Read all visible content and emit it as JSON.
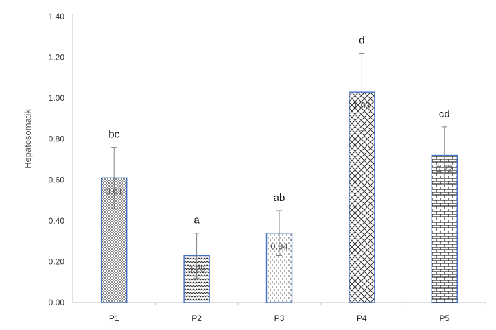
{
  "chart_data": {
    "type": "bar",
    "title": "",
    "xlabel": "",
    "ylabel": "Hepatosomatik",
    "ylim": [
      0,
      1.4
    ],
    "yticks": [
      "0.00",
      "0.20",
      "0.40",
      "0.60",
      "0.80",
      "1.00",
      "1.20",
      "1.40"
    ],
    "grid": false,
    "categories": [
      "P1",
      "P2",
      "P3",
      "P4",
      "P5"
    ],
    "values": [
      0.61,
      0.23,
      0.34,
      1.03,
      0.72
    ],
    "value_labels": [
      "0.61",
      "0.23",
      "0.34",
      "1.03",
      "0.72"
    ],
    "error_bars": [
      0.15,
      0.11,
      0.11,
      0.19,
      0.14
    ],
    "significance_letters": [
      "bc",
      "a",
      "ab",
      "d",
      "cd"
    ],
    "bar_patterns": [
      "dots-fill",
      "wave-fill",
      "dash-fill",
      "crosshatch-fill",
      "brick-fill"
    ],
    "colors": {
      "bar_stroke": "#4472c4",
      "pattern": "#333333",
      "axis": "#bfbfbf"
    }
  }
}
